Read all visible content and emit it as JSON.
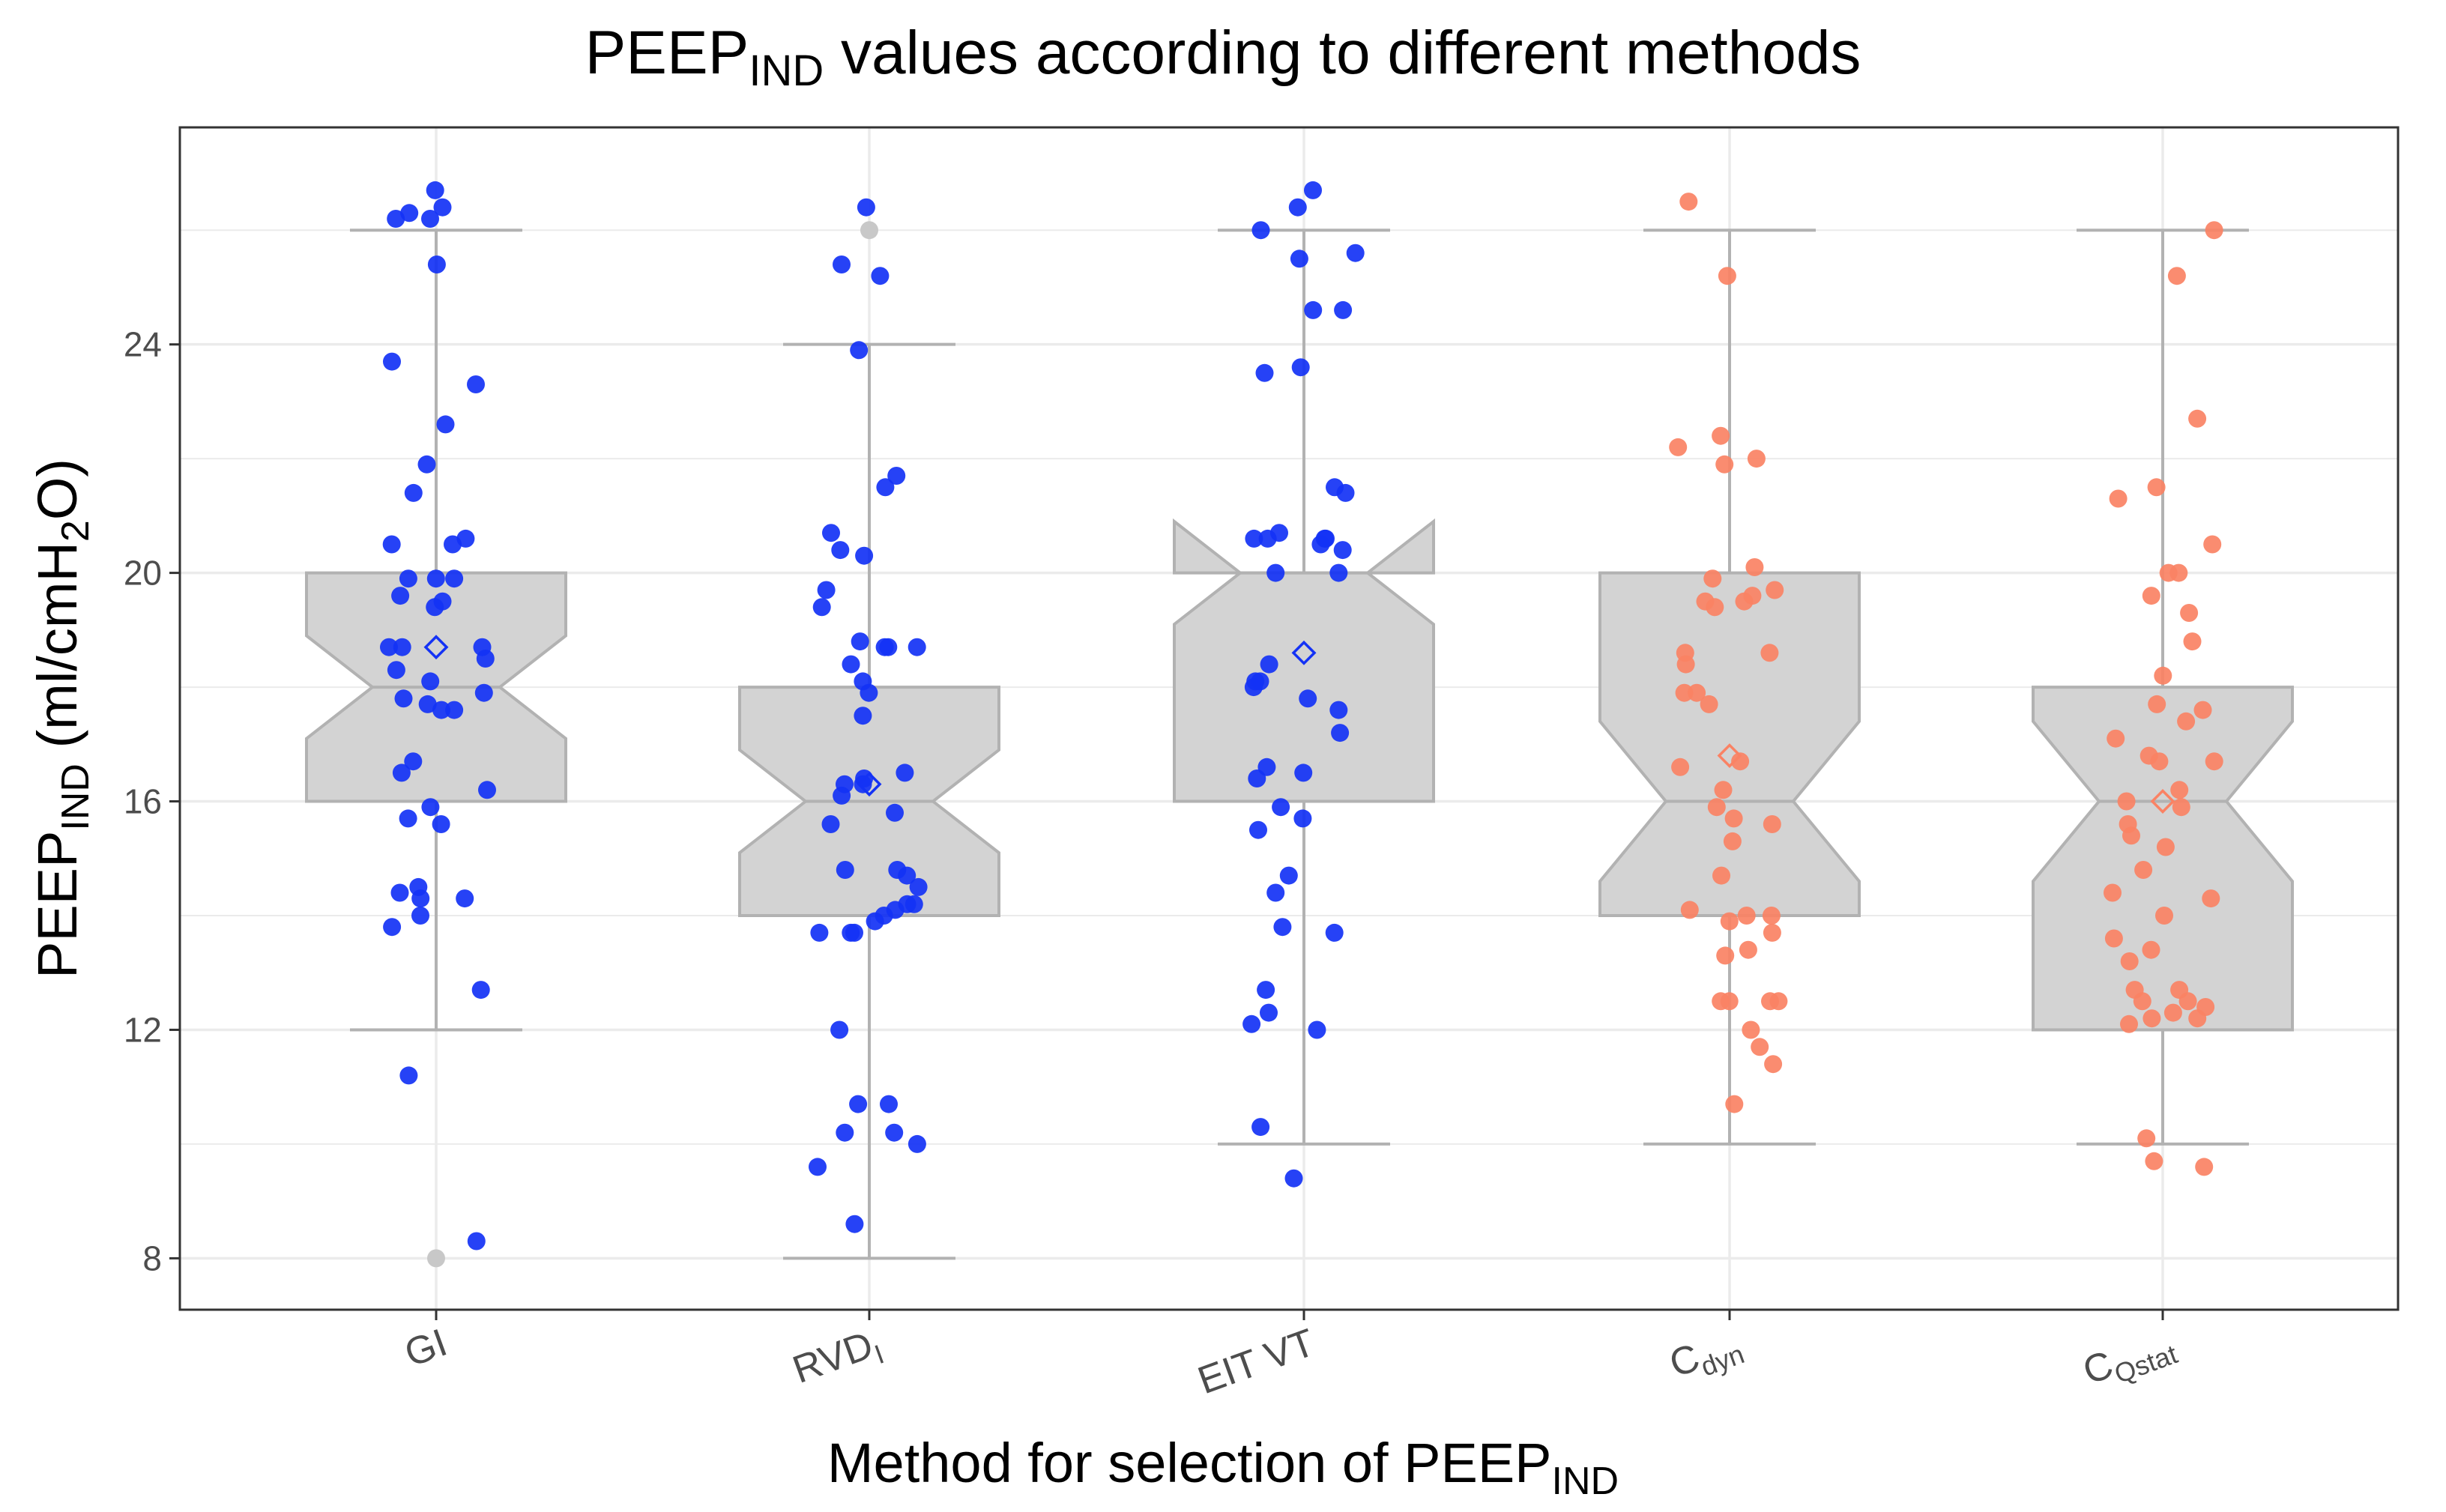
{
  "chart_data": {
    "type": "box",
    "title": {
      "main": "PEEP",
      "sub": "IND",
      "rest": " values according to different methods"
    },
    "xlabel": {
      "main": "Method for selection of PEEP",
      "sub": "IND"
    },
    "ylabel": {
      "main": "PEEP",
      "sub": "IND",
      "rest": " (ml/cmH",
      "sub2": "2",
      "rest2": "O)"
    },
    "ylim": [
      7.1,
      27.8
    ],
    "yticks": [
      8,
      12,
      16,
      20,
      24
    ],
    "grid": true,
    "legend": "none",
    "colors": {
      "blue": "#1432f5",
      "salmon": "#fa8264",
      "box_fill": "#d3d3d3",
      "box_line": "#b2b2b2",
      "outlier": "#c8c8c8",
      "grid": "#ebebeb",
      "panel_border": "#333333"
    },
    "categories": [
      {
        "main": "GI",
        "sub": ""
      },
      {
        "main": "RVD",
        "sub": "I"
      },
      {
        "main": "EIT VT",
        "sub": ""
      },
      {
        "main": "C",
        "sub": "dyn"
      },
      {
        "main": "C",
        "sub": "Qstat"
      }
    ],
    "series": [
      {
        "name": "GI",
        "color": "blue",
        "stats": {
          "min": 12,
          "q1": 16,
          "median": 18,
          "q3": 20,
          "max": 26,
          "notch_low": 17.1,
          "notch_high": 18.9,
          "mean": 18.7
        },
        "outliers": [
          8
        ],
        "points": [
          26.7,
          26.4,
          26.2,
          26.3,
          26.2,
          25.4,
          23.7,
          23.3,
          22.6,
          21.9,
          21.4,
          20.6,
          20.5,
          20.5,
          19.9,
          19.9,
          19.9,
          19.6,
          19.5,
          19.4,
          18.7,
          18.7,
          18.7,
          18.5,
          18.3,
          18.1,
          17.9,
          17.8,
          17.7,
          17.6,
          17.6,
          16.7,
          16.5,
          16.2,
          15.9,
          15.7,
          15.6,
          14.5,
          14.4,
          14.3,
          14.3,
          14.0,
          13.8,
          12.7,
          11.2,
          8.3
        ]
      },
      {
        "name": "RVD_I",
        "color": "blue",
        "stats": {
          "min": 8,
          "q1": 14,
          "median": 16,
          "q3": 18,
          "max": 24,
          "notch_low": 15.1,
          "notch_high": 16.9,
          "mean": 16.3
        },
        "outliers": [
          26
        ],
        "points": [
          26.4,
          25.4,
          25.2,
          23.9,
          21.7,
          21.5,
          20.7,
          20.4,
          20.3,
          19.7,
          19.4,
          18.8,
          18.7,
          18.7,
          18.7,
          18.4,
          18.1,
          17.9,
          17.5,
          16.5,
          16.4,
          16.3,
          16.3,
          16.1,
          15.8,
          15.6,
          14.8,
          14.8,
          14.7,
          14.5,
          14.2,
          14.2,
          14.1,
          14.0,
          13.9,
          13.7,
          13.7,
          13.7,
          12.0,
          10.7,
          10.7,
          10.2,
          10.2,
          10.0,
          9.6,
          8.6
        ]
      },
      {
        "name": "EIT VT",
        "color": "blue",
        "stats": {
          "min": 10,
          "q1": 16,
          "median": 20,
          "q3": 20,
          "max": 26,
          "notch_low": 19.1,
          "notch_high": 20.9,
          "mean": 18.6
        },
        "outliers": [],
        "points": [
          26.7,
          26.4,
          26.0,
          25.6,
          25.5,
          24.6,
          24.6,
          23.6,
          23.5,
          21.5,
          21.4,
          20.7,
          20.6,
          20.6,
          20.6,
          20.6,
          20.5,
          20.4,
          20.0,
          20.0,
          18.4,
          18.1,
          18.1,
          18.0,
          17.8,
          17.6,
          17.2,
          16.6,
          16.5,
          16.4,
          15.9,
          15.7,
          15.5,
          14.7,
          14.4,
          13.8,
          13.7,
          12.7,
          12.3,
          12.1,
          12.0,
          10.3,
          9.4
        ]
      },
      {
        "name": "C_dyn",
        "color": "salmon",
        "stats": {
          "min": 10,
          "q1": 14,
          "median": 16,
          "q3": 20,
          "max": 26,
          "notch_low": 14.6,
          "notch_high": 17.4,
          "mean": 16.8
        },
        "outliers": [],
        "points": [
          26.5,
          25.2,
          22.4,
          22.2,
          22.0,
          21.9,
          20.1,
          19.9,
          19.7,
          19.6,
          19.5,
          19.5,
          19.4,
          18.6,
          18.6,
          18.4,
          17.9,
          17.9,
          17.7,
          16.6,
          16.7,
          16.2,
          15.9,
          15.7,
          15.6,
          15.3,
          14.7,
          14.1,
          14.0,
          14.0,
          13.9,
          13.7,
          13.4,
          13.3,
          12.5,
          12.5,
          12.5,
          12.5,
          12.0,
          11.7,
          11.4,
          10.7
        ]
      },
      {
        "name": "C_Qstat",
        "color": "salmon",
        "stats": {
          "min": 10,
          "q1": 12,
          "median": 16,
          "q3": 18,
          "max": 26,
          "notch_low": 14.6,
          "notch_high": 17.4,
          "mean": 16.0
        },
        "outliers": [],
        "points": [
          26.0,
          25.2,
          22.7,
          21.5,
          21.3,
          20.5,
          20.0,
          20.0,
          19.6,
          19.3,
          18.8,
          18.2,
          17.7,
          17.6,
          17.4,
          17.1,
          16.8,
          16.7,
          16.7,
          16.2,
          16.0,
          15.9,
          15.6,
          15.4,
          15.2,
          14.8,
          14.4,
          14.3,
          14.0,
          13.6,
          13.4,
          13.2,
          12.7,
          12.7,
          12.5,
          12.5,
          12.4,
          12.3,
          12.2,
          12.2,
          12.1,
          10.1,
          9.7,
          9.6
        ]
      }
    ]
  }
}
